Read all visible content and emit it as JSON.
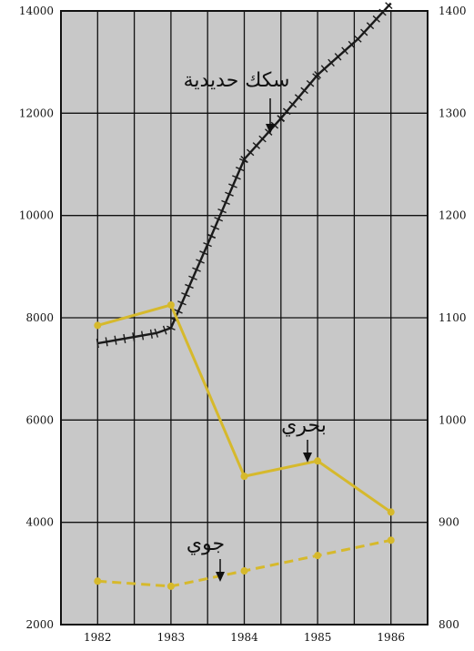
{
  "chart_data": {
    "type": "line",
    "x": [
      1982,
      1983,
      1984,
      1985,
      1986
    ],
    "xlim": [
      1981.5,
      1986.5
    ],
    "ylim_left": [
      2000,
      14000
    ],
    "ylim_right": [
      800,
      1400
    ],
    "left_ticks": [
      "2000",
      "4000",
      "6000",
      "8000",
      "10000",
      "12000",
      "14000"
    ],
    "right_ticks": [
      "800",
      "900",
      "1000",
      "1100",
      "1200",
      "1300",
      "1400"
    ],
    "x_ticks": [
      "1982",
      "1983",
      "1984",
      "1985",
      "1986"
    ],
    "grid": true,
    "background": "#c8c8c8",
    "series": [
      {
        "name": "سكك حديدية",
        "axis": "left",
        "style": "railway",
        "color": "#1a1a1a",
        "x": [
          1982,
          1982.8,
          1983,
          1983.55,
          1984,
          1984.5,
          1985,
          1985.55,
          1986
        ],
        "values": [
          7500,
          7700,
          7800,
          9600,
          11100,
          11900,
          12750,
          13450,
          14150
        ]
      },
      {
        "name": "بحري",
        "axis": "left",
        "style": "solid",
        "color": "#d6b92c",
        "x": [
          1982,
          1983,
          1984,
          1985,
          1986
        ],
        "values": [
          7850,
          8250,
          4900,
          5200,
          4200
        ]
      },
      {
        "name": "جوي",
        "axis": "left",
        "style": "dashed",
        "color": "#d6b92c",
        "x": [
          1982,
          1983,
          1984,
          1985,
          1986
        ],
        "values": [
          2850,
          2750,
          3050,
          3350,
          3650
        ]
      }
    ]
  }
}
